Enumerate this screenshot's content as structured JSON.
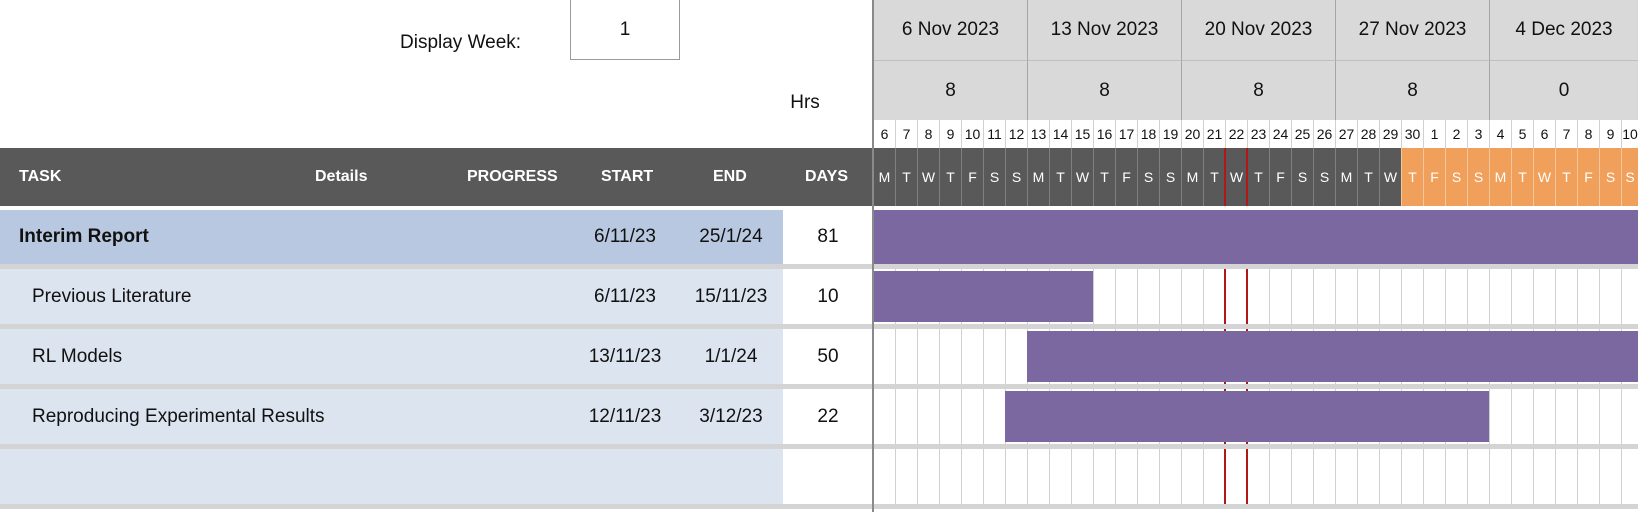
{
  "display_week": {
    "label": "Display Week:",
    "value": "1"
  },
  "hrs_label": "Hrs",
  "weeks": [
    {
      "date": "6 Nov 2023",
      "hours": "8"
    },
    {
      "date": "13 Nov 2023",
      "hours": "8"
    },
    {
      "date": "20 Nov 2023",
      "hours": "8"
    },
    {
      "date": "27 Nov 2023",
      "hours": "8"
    },
    {
      "date": "4 Dec 2023",
      "hours": "0"
    }
  ],
  "day_numbers": [
    "6",
    "7",
    "8",
    "9",
    "10",
    "11",
    "12",
    "13",
    "14",
    "15",
    "16",
    "17",
    "18",
    "19",
    "20",
    "21",
    "22",
    "23",
    "24",
    "25",
    "26",
    "27",
    "28",
    "29",
    "30",
    "1",
    "2",
    "3",
    "4",
    "5",
    "6",
    "7",
    "8",
    "9",
    "10"
  ],
  "day_letters": [
    "M",
    "T",
    "W",
    "T",
    "F",
    "S",
    "S",
    "M",
    "T",
    "W",
    "T",
    "F",
    "S",
    "S",
    "M",
    "T",
    "W",
    "T",
    "F",
    "S",
    "S",
    "M",
    "T",
    "W",
    "T",
    "F",
    "S",
    "S",
    "M",
    "T",
    "W",
    "T",
    "F",
    "S",
    "S"
  ],
  "highlighted_day_start_index": 24,
  "today_marker_day_indices": [
    16,
    17
  ],
  "today_marker_color": "#b01818",
  "headers": {
    "task": "TASK",
    "details": "Details",
    "progress": "PROGRESS",
    "start": "START",
    "end": "END",
    "days": "DAYS"
  },
  "colors": {
    "bar": "#7b68a0",
    "header": "#595959",
    "highlight_days": "#f0a05a",
    "main_row": "#b8c8e0",
    "sub_row": "#dce4ef"
  },
  "tasks": [
    {
      "name": "Interim Report",
      "start": "6/11/23",
      "end": "25/1/24",
      "days": "81",
      "bold": true,
      "bar_start_day": 0,
      "bar_days": 81
    },
    {
      "name": "Previous Literature",
      "start": "6/11/23",
      "end": "15/11/23",
      "days": "10",
      "bold": false,
      "bar_start_day": 0,
      "bar_days": 10
    },
    {
      "name": "RL Models",
      "start": "13/11/23",
      "end": "1/1/24",
      "days": "50",
      "bold": false,
      "bar_start_day": 7,
      "bar_days": 50
    },
    {
      "name": "Reproducing Experimental Results",
      "start": "12/11/23",
      "end": "3/12/23",
      "days": "22",
      "bold": false,
      "bar_start_day": 6,
      "bar_days": 22
    },
    {
      "name": "",
      "start": "",
      "end": "",
      "days": "",
      "bold": false,
      "bar_start_day": null,
      "bar_days": 0
    }
  ]
}
